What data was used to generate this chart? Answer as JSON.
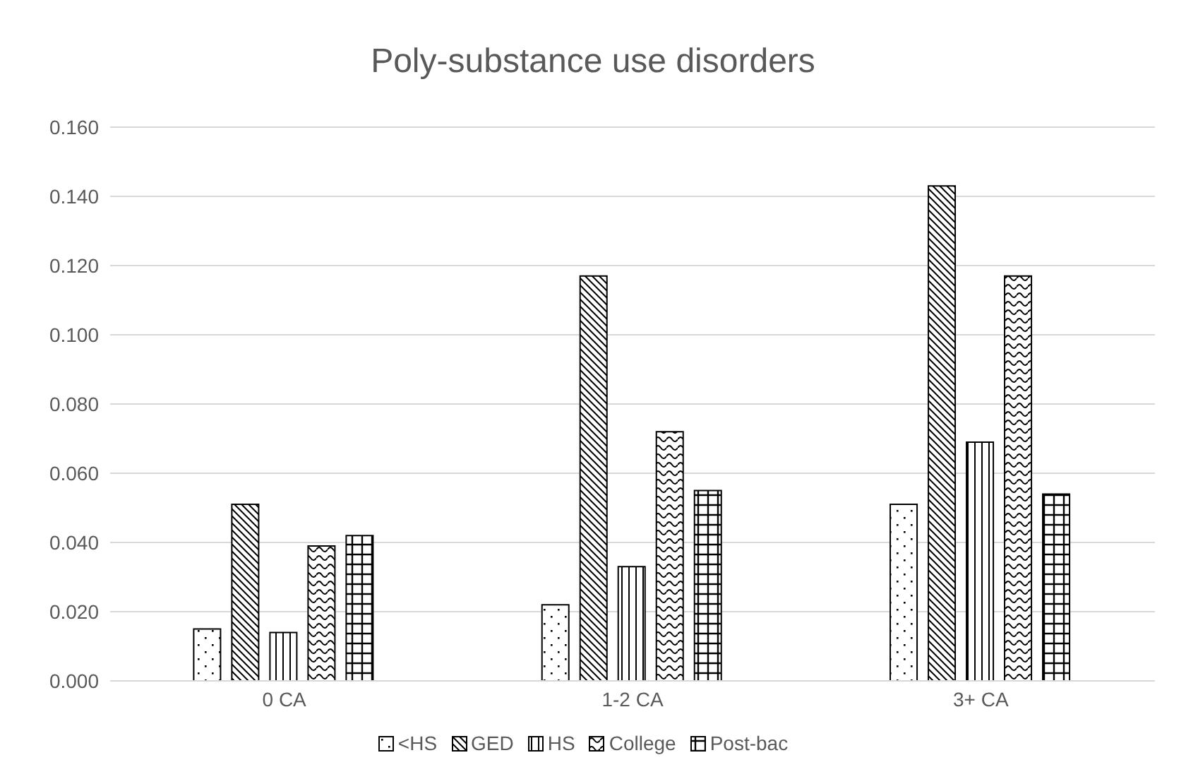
{
  "chart_data": {
    "type": "bar",
    "title": "Poly-substance use disorders",
    "categories": [
      "0 CA",
      "1-2 CA",
      "3+ CA"
    ],
    "series": [
      {
        "name": "<HS",
        "color": "#000000",
        "values": [
          0.015,
          0.022,
          0.051
        ]
      },
      {
        "name": "GED",
        "color": "#000000",
        "values": [
          0.051,
          0.117,
          0.143
        ]
      },
      {
        "name": "HS",
        "color": "#000000",
        "values": [
          0.014,
          0.033,
          0.069
        ]
      },
      {
        "name": "College",
        "color": "#000000",
        "values": [
          0.039,
          0.072,
          0.117
        ]
      },
      {
        "name": "Post-bac",
        "color": "#000000",
        "values": [
          0.042,
          0.055,
          0.054
        ]
      }
    ],
    "ylim": [
      0,
      0.16
    ],
    "yticks": [
      {
        "value": 0,
        "label": "0.000"
      },
      {
        "value": 0.02,
        "label": "0.020"
      },
      {
        "value": 0.04,
        "label": "0.040"
      },
      {
        "value": 0.06,
        "label": "0.060"
      },
      {
        "value": 0.08,
        "label": "0.080"
      },
      {
        "value": 0.1,
        "label": "0.100"
      },
      {
        "value": 0.12,
        "label": "0.120"
      },
      {
        "value": 0.14,
        "label": "0.140"
      },
      {
        "value": 0.16,
        "label": "0.160"
      }
    ],
    "grid": "y",
    "legend": "bottom"
  }
}
